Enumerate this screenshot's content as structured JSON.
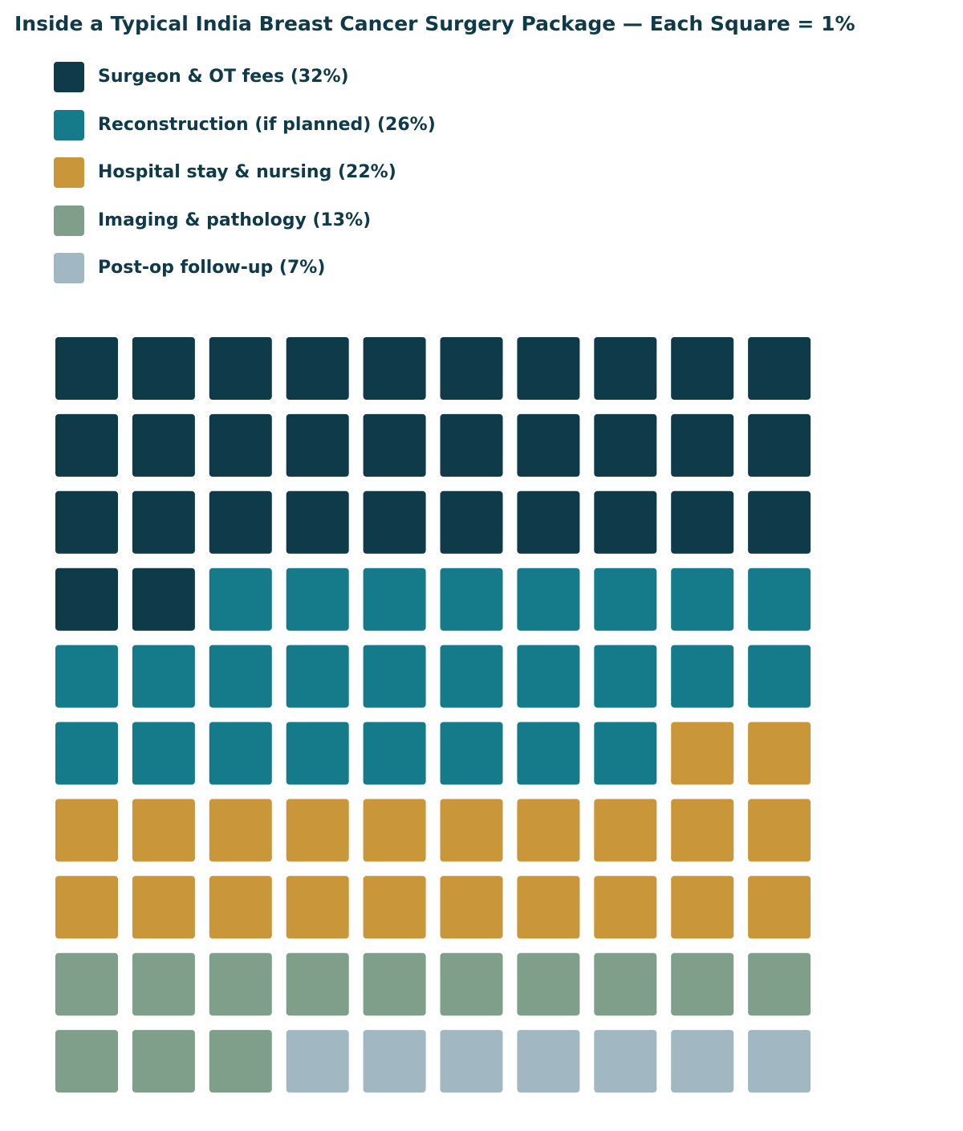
{
  "chart_data": {
    "type": "waffle",
    "title": "Inside a Typical India Breast Cancer Surgery Package — Each Square = 1%",
    "grid": {
      "rows": 10,
      "cols": 10,
      "fill_order": "row-major from top-left"
    },
    "categories": [
      {
        "label": "Surgeon & OT fees (32%)",
        "value": 32,
        "color": "#0f3a4a"
      },
      {
        "label": "Reconstruction (if planned) (26%)",
        "value": 26,
        "color": "#157a8a"
      },
      {
        "label": "Hospital stay & nursing (22%)",
        "value": 22,
        "color": "#c9963a"
      },
      {
        "label": "Imaging & pathology (13%)",
        "value": 13,
        "color": "#7f9f8a"
      },
      {
        "label": "Post-op follow-up (7%)",
        "value": 7,
        "color": "#a1b7c2"
      }
    ],
    "legend_placement": "top-left",
    "background_color": "#ffffff",
    "text_color": "#0f3a4a"
  }
}
